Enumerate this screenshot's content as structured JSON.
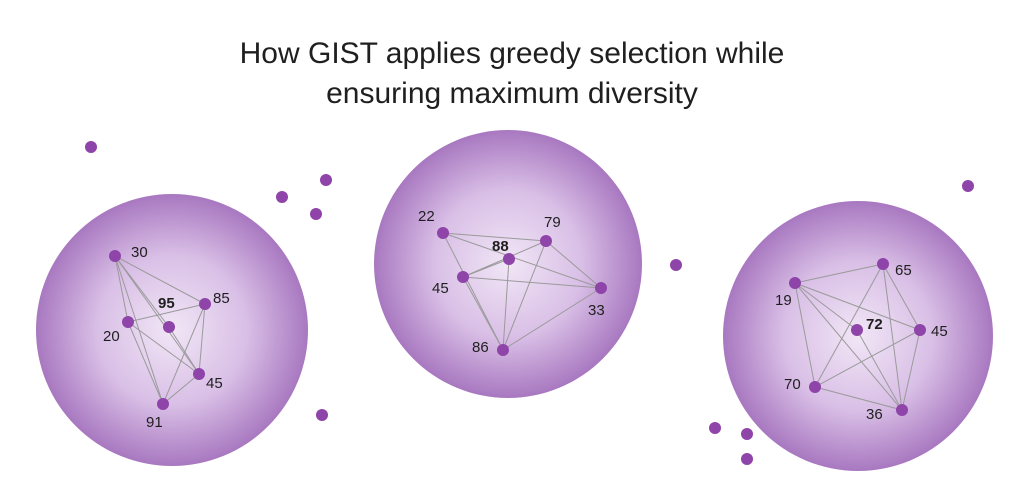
{
  "title": {
    "line1": "How GIST applies greedy selection while",
    "line2": "ensuring maximum diversity"
  },
  "colors": {
    "node": "#8e44a8",
    "edge": "#9a9a9a",
    "sphere_center": "#f1e6f6",
    "sphere_edge": "#a878c0",
    "text": "#1f1f1f"
  },
  "clusters": [
    {
      "id": "cluster-left",
      "nodes": [
        {
          "label": "30",
          "selected": false
        },
        {
          "label": "95",
          "selected": true
        },
        {
          "label": "85",
          "selected": false
        },
        {
          "label": "20",
          "selected": false
        },
        {
          "label": "45",
          "selected": false
        },
        {
          "label": "91",
          "selected": false
        }
      ]
    },
    {
      "id": "cluster-middle",
      "nodes": [
        {
          "label": "22",
          "selected": false
        },
        {
          "label": "88",
          "selected": true
        },
        {
          "label": "79",
          "selected": false
        },
        {
          "label": "45",
          "selected": false
        },
        {
          "label": "33",
          "selected": false
        },
        {
          "label": "86",
          "selected": false
        }
      ]
    },
    {
      "id": "cluster-right",
      "nodes": [
        {
          "label": "65",
          "selected": false
        },
        {
          "label": "19",
          "selected": false
        },
        {
          "label": "72",
          "selected": true
        },
        {
          "label": "45",
          "selected": false
        },
        {
          "label": "70",
          "selected": false
        },
        {
          "label": "36",
          "selected": false
        }
      ]
    }
  ]
}
